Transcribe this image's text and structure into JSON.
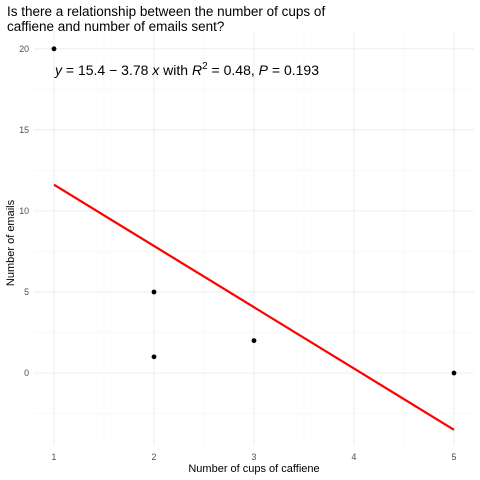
{
  "chart_data": {
    "type": "scatter",
    "title": "Is there a relationship between the number of cups of\ncaffiene and number of emails sent?",
    "xlabel": "Number of cups of caffiene",
    "ylabel": "Number of emails",
    "x_ticks": [
      1,
      2,
      3,
      4,
      5
    ],
    "y_ticks": [
      0,
      5,
      10,
      15,
      20
    ],
    "xlim": [
      0.8,
      5.2
    ],
    "ylim": [
      -4.5,
      21.1
    ],
    "points": [
      {
        "x": 1,
        "y": 20
      },
      {
        "x": 2,
        "y": 5
      },
      {
        "x": 2,
        "y": 1
      },
      {
        "x": 3,
        "y": 2
      },
      {
        "x": 5,
        "y": 0
      }
    ],
    "regression": {
      "intercept": 15.4,
      "slope": -3.78,
      "x_range": [
        1,
        5
      ],
      "color": "#ff0000"
    },
    "annotation": {
      "y_var": "y",
      "eq_main": " = 15.4 − 3.78 ",
      "x_var": "x",
      "with": " with ",
      "r": "R",
      "r_sup": "2",
      "r_val": " = 0.48, ",
      "p": "P",
      "p_val": " = 0.193"
    },
    "point_color": "#000000",
    "grid": true
  }
}
